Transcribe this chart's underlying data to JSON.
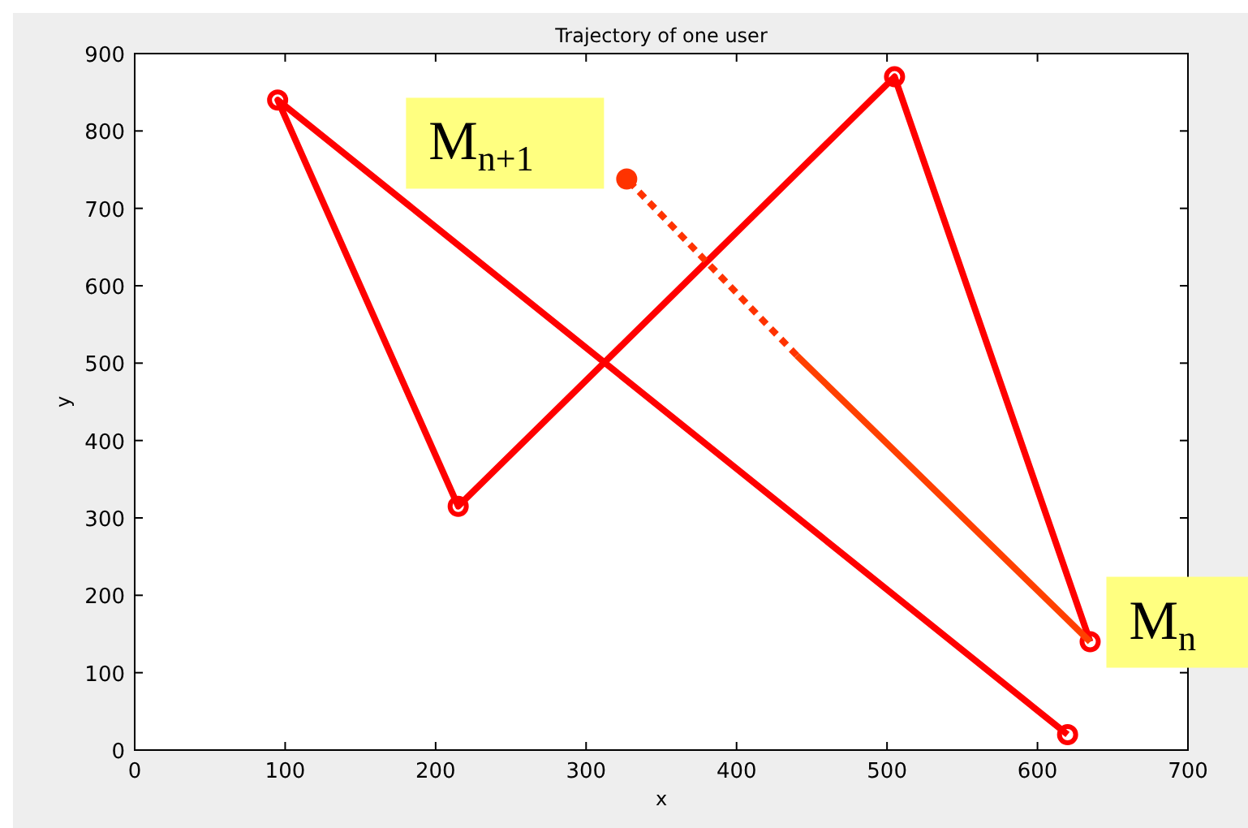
{
  "chart_data": {
    "type": "line",
    "title": "Trajectory of one user",
    "xlabel": "x",
    "ylabel": "y",
    "xlim": [
      0,
      700
    ],
    "xticks": [
      0,
      100,
      200,
      300,
      400,
      500,
      600,
      700
    ],
    "ylim": [
      0,
      900
    ],
    "yticks": [
      0,
      100,
      200,
      300,
      400,
      500,
      600,
      700,
      800,
      900
    ],
    "grid": false,
    "series": [
      {
        "color": "#ff0000",
        "marker": "circle",
        "line_style": "solid",
        "x": [
          620,
          95,
          215,
          505,
          635
        ],
        "values": [
          20,
          840,
          315,
          870,
          140
        ]
      },
      {
        "color": "#ff4000",
        "marker": "none",
        "line_style": "solid",
        "x": [
          635,
          440
        ],
        "values": [
          140,
          510
        ]
      },
      {
        "color": "#ff3300",
        "marker": "none",
        "line_style": "dotted",
        "x": [
          440,
          327
        ],
        "values": [
          510,
          738
        ]
      },
      {
        "type": "scatter",
        "color": "#ff3300",
        "marker": "circle",
        "x": [
          327
        ],
        "values": [
          738
        ]
      }
    ],
    "annotations": [
      {
        "text": "M$_{n+1}$",
        "x": 327,
        "y": 738
      },
      {
        "text": "M$_{n}$",
        "x": 635,
        "y": 140
      }
    ]
  }
}
